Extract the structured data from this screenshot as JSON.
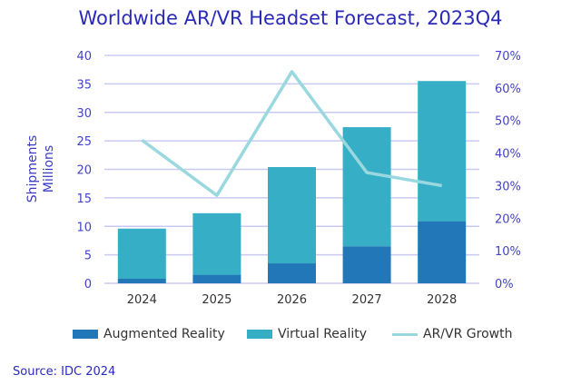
{
  "chart_data": {
    "type": "bar",
    "title": "Worldwide AR/VR Headset Forecast, 2023Q4",
    "ylabel": [
      "Shipments",
      "Millions"
    ],
    "categories": [
      "2024",
      "2025",
      "2026",
      "2027",
      "2028"
    ],
    "stacked": true,
    "series": [
      {
        "name": "Augmented Reality",
        "type": "bar",
        "axis": "left",
        "color": "#2277b8",
        "values": [
          0.8,
          1.5,
          3.5,
          6.5,
          10.9
        ]
      },
      {
        "name": "Virtual Reality",
        "type": "bar",
        "axis": "left",
        "color": "#35aec6",
        "values": [
          8.8,
          10.8,
          16.9,
          20.9,
          24.6
        ]
      },
      {
        "name": "AR/VR Growth",
        "type": "line",
        "axis": "right",
        "color": "#9ad8e0",
        "values": [
          44,
          27,
          65,
          34,
          30
        ]
      }
    ],
    "ylim": [
      0,
      40
    ],
    "yticks": [
      "0",
      "5",
      "10",
      "15",
      "20",
      "25",
      "30",
      "35",
      "40"
    ],
    "y2lim": [
      0,
      70
    ],
    "y2ticks": [
      "0%",
      "10%",
      "20%",
      "30%",
      "40%",
      "50%",
      "60%",
      "70%"
    ],
    "grid": true,
    "legend": "bottom",
    "source": "Source: IDC 2024"
  }
}
